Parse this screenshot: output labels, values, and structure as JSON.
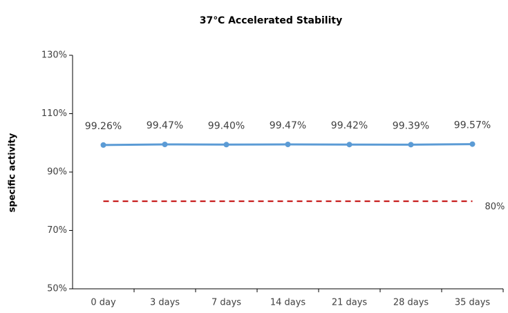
{
  "chart_data": {
    "type": "line",
    "title": "37℃ Accelerated Stability",
    "y_label": "specific activity",
    "categories": [
      "0 day",
      "3 days",
      "7 days",
      "14 days",
      "21 days",
      "28 days",
      "35 days"
    ],
    "values": [
      99.26,
      99.47,
      99.4,
      99.47,
      99.42,
      99.39,
      99.57
    ],
    "value_labels": [
      "99.26%",
      "99.47%",
      "99.40%",
      "99.47%",
      "99.42%",
      "99.39%",
      "99.57%"
    ],
    "color": "#5b9bd5",
    "ylim": [
      50,
      130
    ],
    "yticks": [
      {
        "value": 50,
        "label": "50%"
      },
      {
        "value": 70,
        "label": "70%"
      },
      {
        "value": 90,
        "label": "90%"
      },
      {
        "value": 110,
        "label": "110%"
      },
      {
        "value": 130,
        "label": "130%"
      }
    ],
    "reference_line": {
      "value": 80,
      "label": "80%",
      "color": "#c00000"
    },
    "grid": false
  }
}
